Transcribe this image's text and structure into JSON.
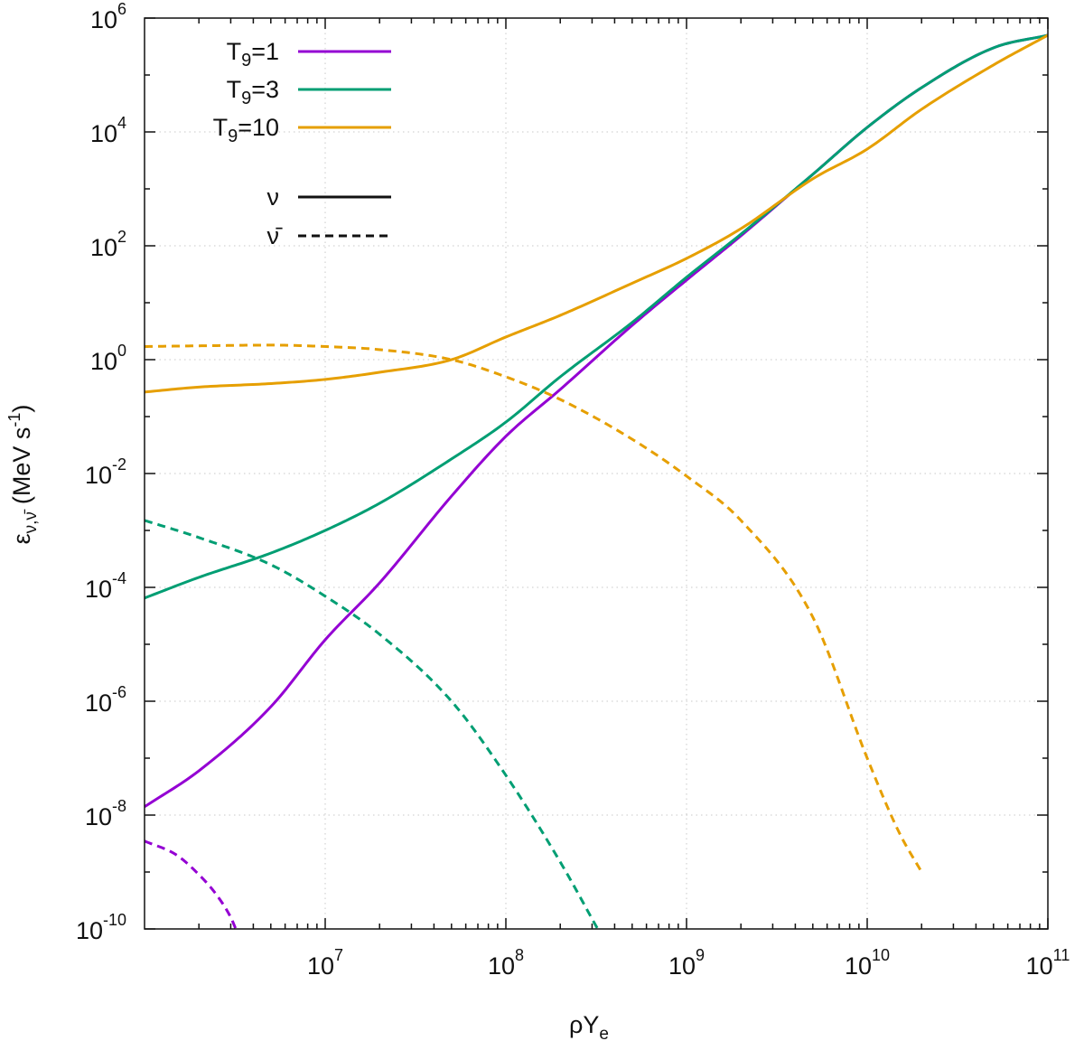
{
  "chart_data": {
    "type": "line",
    "xlabel": "ρY",
    "xlabel_sub": "e",
    "ylabel": "ε",
    "ylabel_sub": "ν,ν̄",
    "ylabel_units": "(MeV s",
    "ylabel_units_sup": "-1",
    "ylabel_units_close": ")",
    "x_scale": "log",
    "y_scale": "log",
    "xlim": [
      1000000,
      100000000000
    ],
    "ylim": [
      1e-10,
      1000000
    ],
    "grid": true,
    "legend_position": "top-left",
    "x_ticks": [
      {
        "base": "10",
        "exp": "7",
        "value": 10000000
      },
      {
        "base": "10",
        "exp": "8",
        "value": 100000000
      },
      {
        "base": "10",
        "exp": "9",
        "value": 1000000000
      },
      {
        "base": "10",
        "exp": "10",
        "value": 10000000000
      },
      {
        "base": "10",
        "exp": "11",
        "value": 100000000000
      }
    ],
    "y_ticks": [
      {
        "base": "10",
        "exp": "6",
        "value": 1000000
      },
      {
        "base": "10",
        "exp": "4",
        "value": 10000
      },
      {
        "base": "10",
        "exp": "2",
        "value": 100
      },
      {
        "base": "10",
        "exp": "0",
        "value": 1
      },
      {
        "base": "10",
        "exp": "-2",
        "value": 0.01
      },
      {
        "base": "10",
        "exp": "-4",
        "value": 0.0001
      },
      {
        "base": "10",
        "exp": "-6",
        "value": 1e-06
      },
      {
        "base": "10",
        "exp": "-8",
        "value": 1e-08
      },
      {
        "base": "10",
        "exp": "-10",
        "value": 1e-10
      }
    ],
    "legend": {
      "temperatures": [
        {
          "label_pre": "T",
          "label_sub": "9",
          "label_post": "=1",
          "color": "#9400d3"
        },
        {
          "label_pre": "T",
          "label_sub": "9",
          "label_post": "=3",
          "color": "#009e73"
        },
        {
          "label_pre": "T",
          "label_sub": "9",
          "label_post": "=10",
          "color": "#e69f00"
        }
      ],
      "styles": [
        {
          "label": "ν",
          "dash": "solid"
        },
        {
          "label": "ν̄",
          "dash": "dashed"
        }
      ]
    },
    "series": [
      {
        "t9": "1",
        "particle": "ν",
        "dash": "solid",
        "color": "#9400d3",
        "x": [
          1000000,
          2000000,
          5000000,
          10000000,
          20000000,
          50000000,
          100000000,
          200000000,
          500000000,
          1000000000,
          2000000000,
          5000000000,
          10000000000,
          20000000000,
          50000000000,
          100000000000
        ],
        "y": [
          1.4e-08,
          6e-08,
          8e-07,
          1.2e-05,
          0.00012,
          0.004,
          0.045,
          0.3,
          4,
          25,
          150,
          1800,
          12000,
          60000,
          300000,
          500000
        ]
      },
      {
        "t9": "1",
        "particle": "ν̄",
        "dash": "dashed",
        "color": "#9400d3",
        "x": [
          1000000,
          1500000,
          2000000,
          2500000,
          3000000,
          3200000
        ],
        "y": [
          3.5e-09,
          2e-09,
          9e-10,
          4e-10,
          1.6e-10,
          1e-10
        ]
      },
      {
        "t9": "3",
        "particle": "ν",
        "dash": "solid",
        "color": "#009e73",
        "x": [
          1000000,
          2000000,
          5000000,
          10000000,
          20000000,
          50000000,
          100000000,
          200000000,
          500000000,
          1000000000,
          2000000000,
          5000000000,
          10000000000,
          20000000000,
          50000000000,
          100000000000
        ],
        "y": [
          6.5e-05,
          0.00015,
          0.0004,
          0.001,
          0.003,
          0.018,
          0.08,
          0.5,
          4.5,
          28,
          160,
          1800,
          12000,
          60000,
          300000,
          500000
        ]
      },
      {
        "t9": "3",
        "particle": "ν̄",
        "dash": "dashed",
        "color": "#009e73",
        "x": [
          1000000,
          2000000,
          5000000,
          10000000,
          20000000,
          50000000,
          100000000,
          200000000,
          300000000,
          350000000,
          400000000
        ],
        "y": [
          0.0015,
          0.00075,
          0.00025,
          7e-05,
          1.5e-05,
          1e-06,
          5e-08,
          1.5e-09,
          1.5e-10,
          6e-11,
          2e-11
        ]
      },
      {
        "t9": "10",
        "particle": "ν",
        "dash": "solid",
        "color": "#e69f00",
        "x": [
          1000000,
          2000000,
          5000000,
          10000000,
          20000000,
          50000000,
          100000000,
          200000000,
          500000000,
          1000000000,
          2000000000,
          5000000000,
          10000000000,
          20000000000,
          50000000000,
          100000000000
        ],
        "y": [
          0.27,
          0.33,
          0.38,
          0.45,
          0.6,
          1,
          2.5,
          6,
          22,
          60,
          200,
          1500,
          5000,
          25000,
          150000,
          500000
        ]
      },
      {
        "t9": "10",
        "particle": "ν̄",
        "dash": "dashed",
        "color": "#e69f00",
        "x": [
          1000000,
          2000000,
          5000000,
          10000000,
          20000000,
          50000000,
          100000000,
          200000000,
          500000000,
          1000000000,
          2000000000,
          5000000000,
          10000000000,
          15000000000,
          20000000000
        ],
        "y": [
          1.7,
          1.75,
          1.8,
          1.7,
          1.5,
          1,
          0.5,
          0.2,
          0.04,
          0.009,
          0.0015,
          3e-05,
          1e-07,
          5e-09,
          1e-09
        ]
      }
    ]
  }
}
